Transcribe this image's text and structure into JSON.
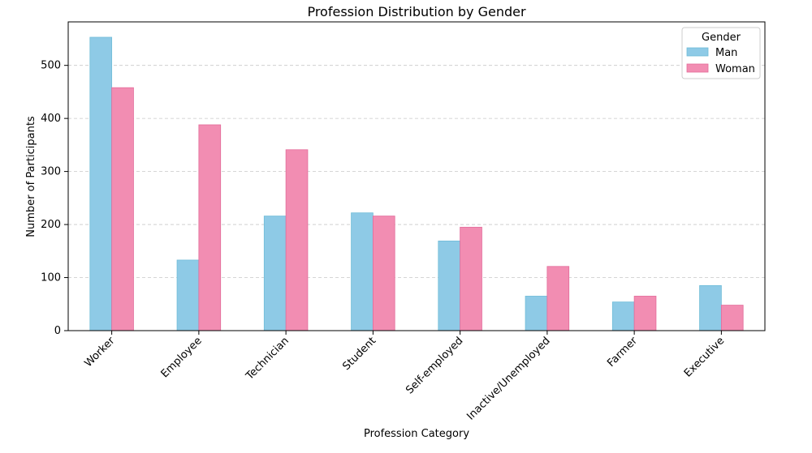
{
  "chart_data": {
    "type": "bar",
    "title": "Profession Distribution by Gender",
    "xlabel": "Profession Category",
    "ylabel": "Number of Participants",
    "categories": [
      "Worker",
      "Employee",
      "Technician",
      "Student",
      "Self-employed",
      "Inactive/Unemployed",
      "Farmer",
      "Executive"
    ],
    "series": [
      {
        "name": "Man",
        "values": [
          553,
          133,
          216,
          222,
          169,
          65,
          54,
          85
        ],
        "color": "#8ecae6",
        "edge": "#6fbcd8"
      },
      {
        "name": "Woman",
        "values": [
          458,
          388,
          341,
          216,
          195,
          121,
          65,
          48
        ],
        "color": "#f28db2",
        "edge": "#e36c9a"
      }
    ],
    "ylim": [
      0,
      582
    ],
    "yticks": [
      0,
      100,
      200,
      300,
      400,
      500
    ],
    "grid": "y-dashed",
    "legend": {
      "title": "Gender",
      "placement": "top-right"
    }
  }
}
